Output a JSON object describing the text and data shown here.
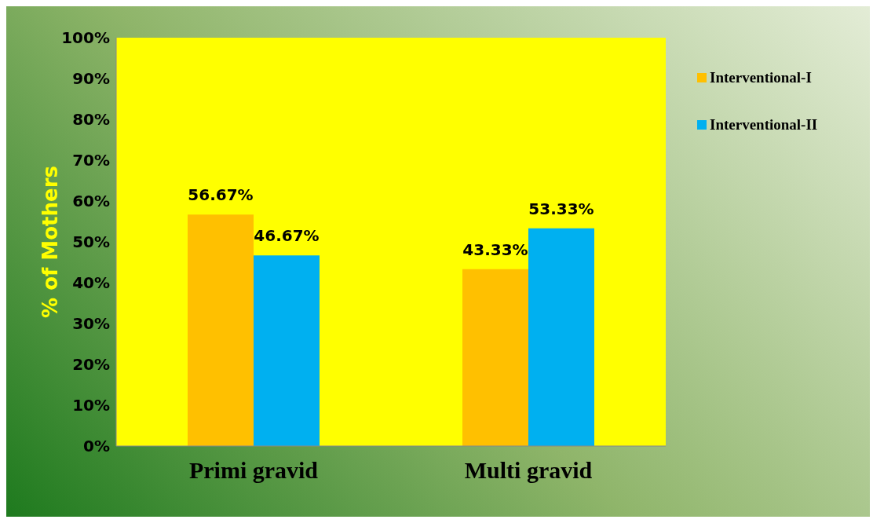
{
  "chart_data": {
    "type": "bar",
    "ylabel": "% of Mothers",
    "categories": [
      "Primi gravid",
      "Multi  gravid"
    ],
    "series": [
      {
        "name": "Interventional-I",
        "color": "#ffc000",
        "values": [
          56.67,
          43.33
        ],
        "value_labels": [
          "56.67%",
          "43.33%"
        ]
      },
      {
        "name": "Interventional-II",
        "color": "#00b0f0",
        "values": [
          46.67,
          53.33
        ],
        "value_labels": [
          "46.67%",
          "53.33%"
        ]
      }
    ],
    "ylim": [
      0,
      100
    ],
    "yticks": [
      {
        "value": 0,
        "label": "0%"
      },
      {
        "value": 10,
        "label": "10%"
      },
      {
        "value": 20,
        "label": "20%"
      },
      {
        "value": 30,
        "label": "30%"
      },
      {
        "value": 40,
        "label": "40%"
      },
      {
        "value": 50,
        "label": "50%"
      },
      {
        "value": 60,
        "label": "60%"
      },
      {
        "value": 70,
        "label": "70%"
      },
      {
        "value": 80,
        "label": "80%"
      },
      {
        "value": 90,
        "label": "90%"
      },
      {
        "value": 100,
        "label": "100%"
      }
    ],
    "grid": false,
    "legend": "top right"
  }
}
